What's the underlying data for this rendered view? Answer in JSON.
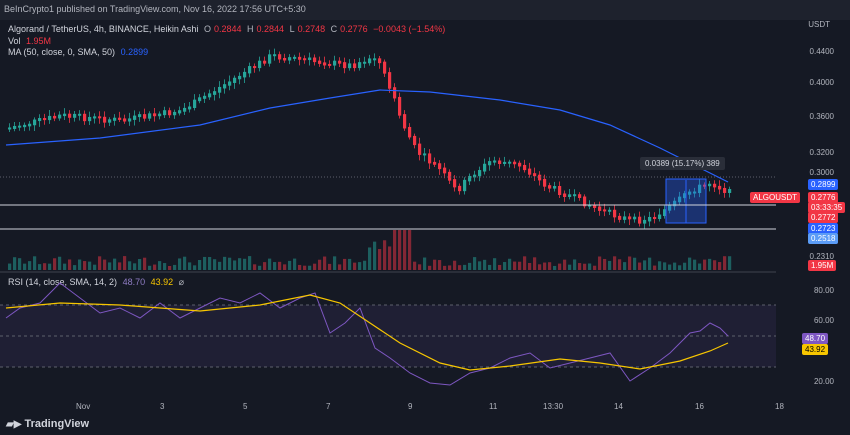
{
  "header": {
    "publisher": "BeInCrypto1 published on TradingView.com, Nov 16, 2022 17:56 UTC+5:30",
    "symbol": "Algorand / TetherUS, 4h, BINANCE, Heikin Ashi",
    "ohlc": {
      "o_label": "O",
      "o": "0.2844",
      "h_label": "H",
      "h": "0.2844",
      "l_label": "L",
      "l": "0.2748",
      "c_label": "C",
      "c": "0.2776",
      "chg": "−0.0043 (−1.54%)"
    },
    "vol": {
      "label": "Vol",
      "value": "1.95M"
    },
    "ma": {
      "label": "MA (50, close, 0, SMA, 50)",
      "value": "0.2899"
    }
  },
  "price_scale": {
    "currency": "USDT",
    "ticks": [
      "0.4400",
      "0.4000",
      "0.3600",
      "0.3200",
      "0.3000",
      "0.2310"
    ],
    "ma_value": "0.2899",
    "symbol_tag": "ALGOUSDT",
    "last_price": "0.2776",
    "countdown": "03:33:35",
    "line_1": "0.2772",
    "line_2": "0.2723",
    "line_3": "0.2518",
    "volume_value": "1.95M"
  },
  "measure": {
    "text": "0.0389 (15.17%) 389"
  },
  "rsi": {
    "label": "RSI (14, close, SMA, 14, 2)",
    "value": "48.70",
    "sma": "43.92",
    "ticks": [
      "80.00",
      "60.00",
      "20.00"
    ]
  },
  "time_axis": [
    "Nov",
    "3",
    "5",
    "7",
    "9",
    "11",
    "13:30",
    "14",
    "16",
    "18"
  ],
  "footer": {
    "logo_text": "TradingView"
  },
  "colors": {
    "up": "#26a69a",
    "down": "#f23645",
    "ma": "#2962ff",
    "rsi": "#7e57c2",
    "rsi_ma": "#f7c600",
    "background": "#151924"
  }
}
